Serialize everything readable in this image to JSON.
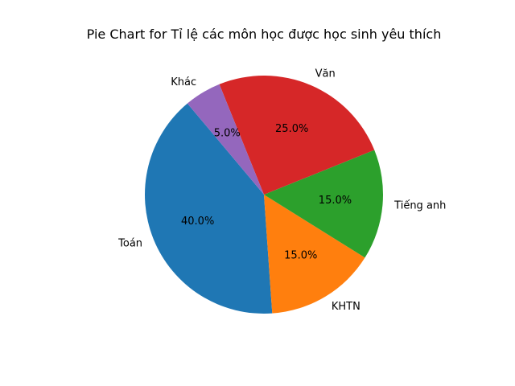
{
  "chart_data": {
    "type": "pie",
    "title": "Pie Chart for Tỉ lệ các môn học được học sinh yêu thích",
    "start_angle_deg": 130,
    "direction": "counterclockwise",
    "slices": [
      {
        "label": "Toán",
        "value": 40.0,
        "pct_label": "40.0%",
        "color": "#1f77b4"
      },
      {
        "label": "KHTN",
        "value": 15.0,
        "pct_label": "15.0%",
        "color": "#ff7f0e"
      },
      {
        "label": "Tiếng anh",
        "value": 15.0,
        "pct_label": "15.0%",
        "color": "#2ca02c"
      },
      {
        "label": "Văn",
        "value": 25.0,
        "pct_label": "25.0%",
        "color": "#d62728"
      },
      {
        "label": "Khác",
        "value": 5.0,
        "pct_label": "5.0%",
        "color": "#9467bd"
      }
    ]
  }
}
